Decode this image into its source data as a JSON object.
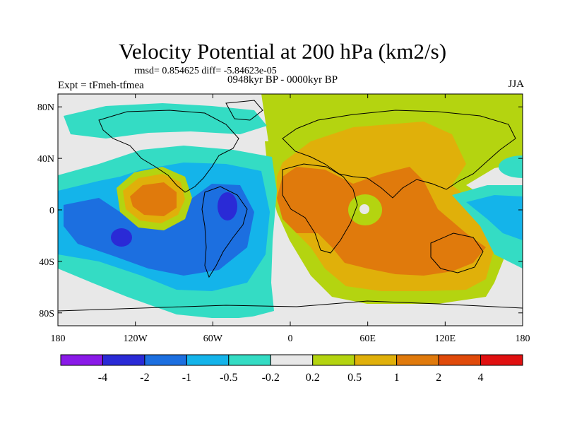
{
  "title": "Velocity Potential at 200 hPa (km2/s)",
  "stats_line": "rmsd= 0.854625 diff= -5.84623e-05",
  "experiment_label": "Expt = tFmeh-tfmea",
  "period_label": "0948kyr BP - 0000kyr BP",
  "season_label": "JJA",
  "lat_ticks": [
    "80N",
    "40N",
    "0",
    "40S",
    "80S"
  ],
  "lon_ticks": [
    "180",
    "120W",
    "60W",
    "0",
    "60E",
    "120E",
    "180"
  ],
  "colorbar": {
    "labels": [
      "-4",
      "-2",
      "-1",
      "-0.5",
      "-0.2",
      "0.2",
      "0.5",
      "1",
      "2",
      "4"
    ],
    "colors": [
      "#8a1ae8",
      "#2a2ad6",
      "#1c6fe0",
      "#14b4ea",
      "#34dcc4",
      "#e8e8e8",
      "#b4d410",
      "#e0b00a",
      "#e07a0c",
      "#e04a0a",
      "#e01010"
    ]
  },
  "field_colors": {
    "near_zero": "#e8e8e8",
    "pos_weak": "#b4d410",
    "pos_mid": "#e0b00a",
    "pos_strong": "#e07a0c",
    "neg_weak": "#34dcc4",
    "neg_mid": "#14b4ea",
    "neg_strong": "#1c6fe0",
    "neg_max": "#2a2ad6"
  }
}
